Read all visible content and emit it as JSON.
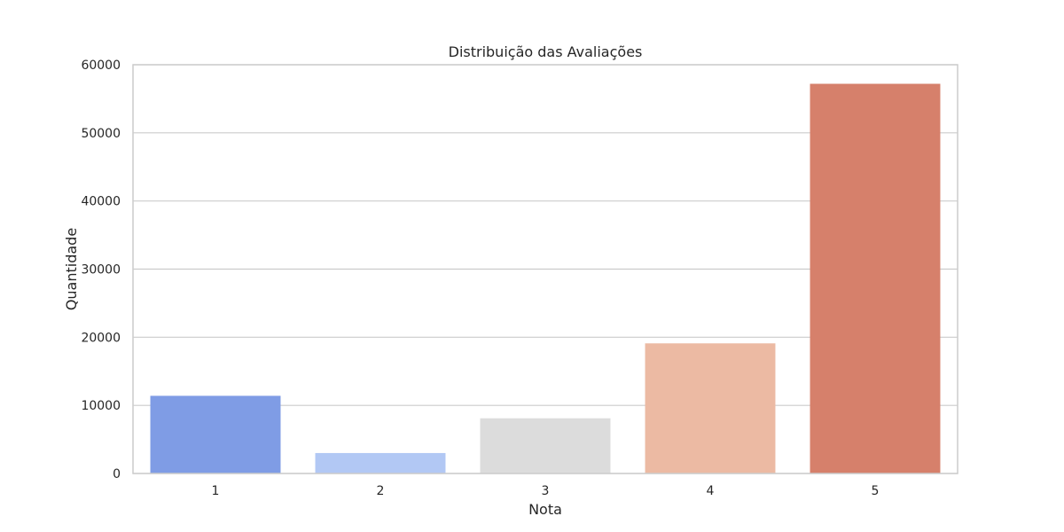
{
  "chart_data": {
    "type": "bar",
    "title": "Distribuição das Avaliações",
    "xlabel": "Nota",
    "ylabel": "Quantidade",
    "categories": [
      "1",
      "2",
      "3",
      "4",
      "5"
    ],
    "values": [
      11400,
      3000,
      8100,
      19100,
      57200
    ],
    "colors": [
      "#7f9ce5",
      "#b2c8f4",
      "#dcdcdc",
      "#ecbaa3",
      "#d6806b"
    ],
    "ylim": [
      0,
      60000
    ],
    "yticks": [
      0,
      10000,
      20000,
      30000,
      40000,
      50000,
      60000
    ],
    "grid": true,
    "grid_color": "#cccccc",
    "frame_color": "#cccccc"
  }
}
